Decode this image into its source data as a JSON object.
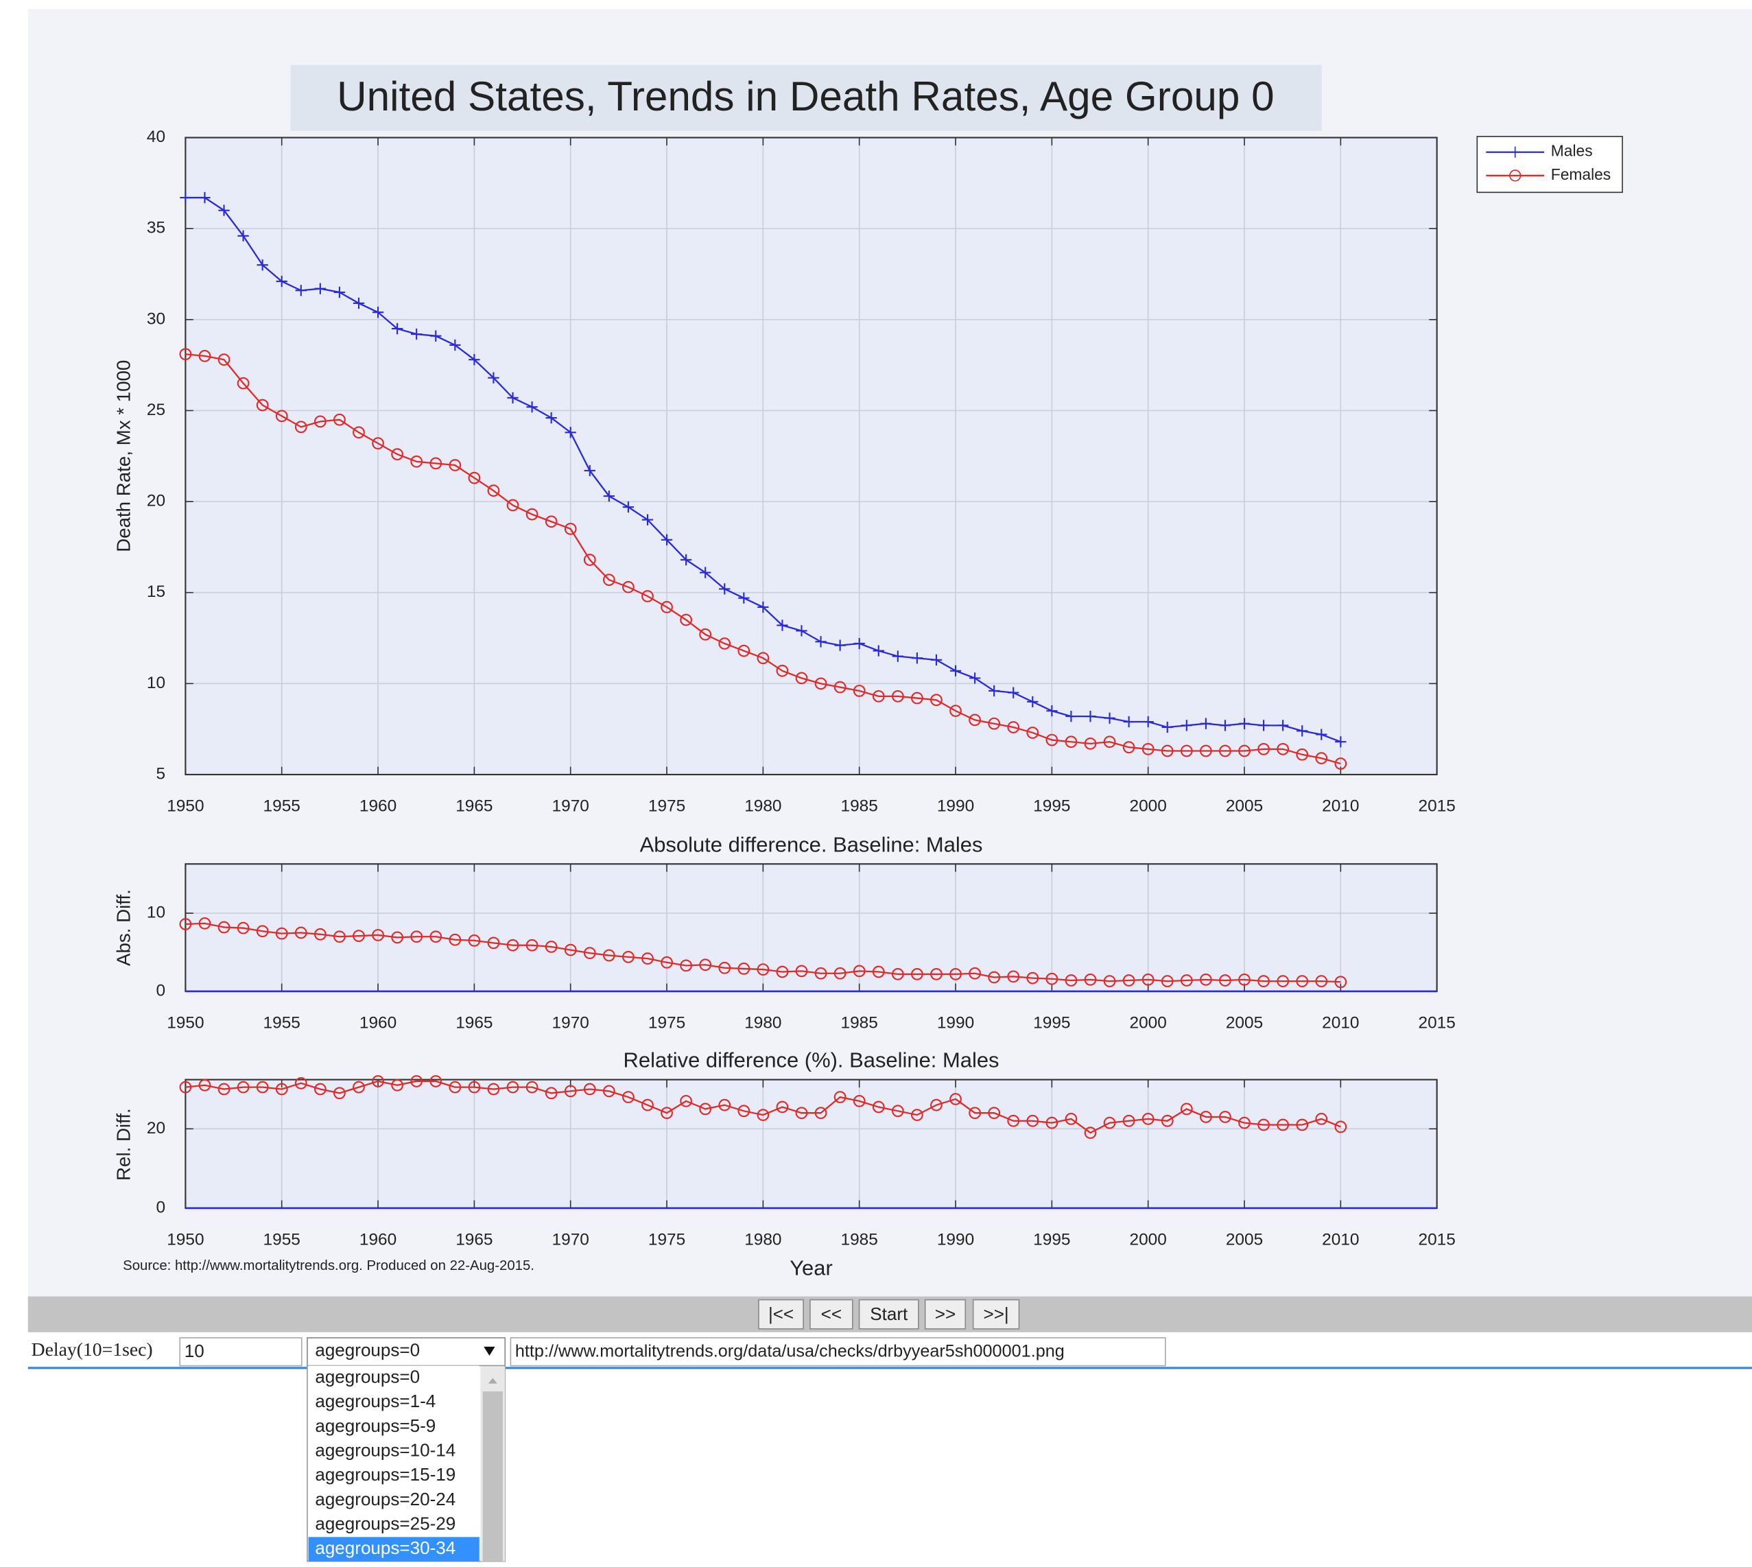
{
  "chart_data": [
    {
      "type": "line",
      "title": "United States, Trends in Death Rates, Age Group 0",
      "ylabel": "Death Rate, Mx * 1000",
      "x": [
        1950,
        1951,
        1952,
        1953,
        1954,
        1955,
        1956,
        1957,
        1958,
        1959,
        1960,
        1961,
        1962,
        1963,
        1964,
        1965,
        1966,
        1967,
        1968,
        1969,
        1970,
        1971,
        1972,
        1973,
        1974,
        1975,
        1976,
        1977,
        1978,
        1979,
        1980,
        1981,
        1982,
        1983,
        1984,
        1985,
        1986,
        1987,
        1988,
        1989,
        1990,
        1991,
        1992,
        1993,
        1994,
        1995,
        1996,
        1997,
        1998,
        1999,
        2000,
        2001,
        2002,
        2003,
        2004,
        2005,
        2006,
        2007,
        2008,
        2009,
        2010
      ],
      "series": [
        {
          "name": "Males",
          "color": "#2a2ad8",
          "marker": "plus",
          "values": [
            36.7,
            36.7,
            36.0,
            34.6,
            33.0,
            32.1,
            31.6,
            31.7,
            31.5,
            30.9,
            30.4,
            29.5,
            29.2,
            29.1,
            28.6,
            27.8,
            26.8,
            25.7,
            25.2,
            24.6,
            23.8,
            21.7,
            20.3,
            19.7,
            19.0,
            17.9,
            16.8,
            16.1,
            15.2,
            14.7,
            14.2,
            13.2,
            12.9,
            12.3,
            12.1,
            12.2,
            11.8,
            11.5,
            11.4,
            11.3,
            10.7,
            10.3,
            9.6,
            9.5,
            9.0,
            8.5,
            8.2,
            8.2,
            8.1,
            7.9,
            7.9,
            7.6,
            7.7,
            7.8,
            7.7,
            7.8,
            7.7,
            7.7,
            7.4,
            7.2,
            6.8
          ]
        },
        {
          "name": "Females",
          "color": "#e02a2a",
          "marker": "circle",
          "values": [
            28.1,
            28.0,
            27.8,
            26.5,
            25.3,
            24.7,
            24.1,
            24.4,
            24.5,
            23.8,
            23.2,
            22.6,
            22.2,
            22.1,
            22.0,
            21.3,
            20.6,
            19.8,
            19.3,
            18.9,
            18.5,
            16.8,
            15.7,
            15.3,
            14.8,
            14.2,
            13.5,
            12.7,
            12.2,
            11.8,
            11.4,
            10.7,
            10.3,
            10.0,
            9.8,
            9.6,
            9.3,
            9.3,
            9.2,
            9.1,
            8.5,
            8.0,
            7.8,
            7.6,
            7.3,
            6.9,
            6.8,
            6.7,
            6.8,
            6.5,
            6.4,
            6.3,
            6.3,
            6.3,
            6.3,
            6.3,
            6.4,
            6.4,
            6.1,
            5.9,
            5.6
          ]
        }
      ],
      "xlim": [
        1950,
        2015
      ],
      "xticks": [
        1950,
        1955,
        1960,
        1965,
        1970,
        1975,
        1980,
        1985,
        1990,
        1995,
        2000,
        2005,
        2010,
        2015
      ],
      "ylim": [
        5,
        40
      ],
      "yticks": [
        5,
        10,
        15,
        20,
        25,
        30,
        35,
        40
      ],
      "grid": true,
      "legend": "upper right outside"
    },
    {
      "type": "line",
      "title": "Absolute difference. Baseline: Males",
      "ylabel": "Abs. Diff.",
      "x": [
        1950,
        1951,
        1952,
        1953,
        1954,
        1955,
        1956,
        1957,
        1958,
        1959,
        1960,
        1961,
        1962,
        1963,
        1964,
        1965,
        1966,
        1967,
        1968,
        1969,
        1970,
        1971,
        1972,
        1973,
        1974,
        1975,
        1976,
        1977,
        1978,
        1979,
        1980,
        1981,
        1982,
        1983,
        1984,
        1985,
        1986,
        1987,
        1988,
        1989,
        1990,
        1991,
        1992,
        1993,
        1994,
        1995,
        1996,
        1997,
        1998,
        1999,
        2000,
        2001,
        2002,
        2003,
        2004,
        2005,
        2006,
        2007,
        2008,
        2009,
        2010
      ],
      "series": [
        {
          "color": "#e02a2a",
          "marker": "circle",
          "values": [
            8.6,
            8.7,
            8.2,
            8.1,
            7.7,
            7.4,
            7.5,
            7.3,
            7.0,
            7.1,
            7.2,
            6.9,
            7.0,
            7.0,
            6.6,
            6.5,
            6.2,
            5.9,
            5.9,
            5.7,
            5.3,
            4.9,
            4.6,
            4.4,
            4.2,
            3.7,
            3.3,
            3.4,
            3.0,
            2.9,
            2.8,
            2.5,
            2.6,
            2.3,
            2.3,
            2.6,
            2.5,
            2.2,
            2.2,
            2.2,
            2.2,
            2.3,
            1.8,
            1.9,
            1.7,
            1.6,
            1.4,
            1.5,
            1.3,
            1.4,
            1.5,
            1.3,
            1.4,
            1.5,
            1.4,
            1.5,
            1.3,
            1.3,
            1.3,
            1.3,
            1.2
          ]
        }
      ],
      "baseline": 0,
      "baseline_color": "#2a2ad8",
      "xlim": [
        1950,
        2015
      ],
      "xticks": [
        1950,
        1955,
        1960,
        1965,
        1970,
        1975,
        1980,
        1985,
        1990,
        1995,
        2000,
        2005,
        2010,
        2015
      ],
      "ylim": [
        0,
        16.3
      ],
      "yticks": [
        0,
        10
      ],
      "grid": true
    },
    {
      "type": "line",
      "title": "Relative difference (%). Baseline: Males",
      "ylabel": "Rel. Diff.",
      "xlabel": "Year",
      "source": "Source: http://www.mortalitytrends.org.  Produced on 22-Aug-2015.",
      "x": [
        1950,
        1951,
        1952,
        1953,
        1954,
        1955,
        1956,
        1957,
        1958,
        1959,
        1960,
        1961,
        1962,
        1963,
        1964,
        1965,
        1966,
        1967,
        1968,
        1969,
        1970,
        1971,
        1972,
        1973,
        1974,
        1975,
        1976,
        1977,
        1978,
        1979,
        1980,
        1981,
        1982,
        1983,
        1984,
        1985,
        1986,
        1987,
        1988,
        1989,
        1990,
        1991,
        1992,
        1993,
        1994,
        1995,
        1996,
        1997,
        1998,
        1999,
        2000,
        2001,
        2002,
        2003,
        2004,
        2005,
        2006,
        2007,
        2008,
        2009,
        2010
      ],
      "series": [
        {
          "color": "#e02a2a",
          "marker": "circle",
          "values": [
            30.5,
            31,
            30,
            30.5,
            30.5,
            30,
            31.5,
            30,
            29,
            30.5,
            32,
            31,
            32,
            32,
            30.5,
            30.5,
            30,
            30.5,
            30.5,
            29,
            29.5,
            30,
            29.5,
            28,
            26,
            24,
            27,
            25,
            26,
            24.5,
            23.5,
            25.5,
            24,
            24,
            28,
            27,
            25.5,
            24.5,
            23.5,
            26,
            27.5,
            24,
            24,
            22,
            22,
            21.5,
            22.5,
            19,
            21.5,
            22,
            22.5,
            22,
            25,
            23,
            23,
            21.5,
            21,
            21,
            21,
            22.5,
            20.5
          ]
        }
      ],
      "baseline": 0,
      "baseline_color": "#2a2ad8",
      "xlim": [
        1950,
        2015
      ],
      "xticks": [
        1950,
        1955,
        1960,
        1965,
        1970,
        1975,
        1980,
        1985,
        1990,
        1995,
        2000,
        2005,
        2010,
        2015
      ],
      "ylim": [
        0,
        32.4
      ],
      "yticks": [
        0,
        20
      ],
      "grid": true
    }
  ],
  "controls": {
    "buttons": [
      "|<<",
      "<<",
      "Start",
      ">>",
      ">>|"
    ],
    "delay_label": "Delay(10=1sec)",
    "delay_value": "10",
    "select_value": "agegroups=0",
    "options": [
      "agegroups=0",
      "agegroups=1-4",
      "agegroups=5-9",
      "agegroups=10-14",
      "agegroups=15-19",
      "agegroups=20-24",
      "agegroups=25-29",
      "agegroups=30-34"
    ],
    "highlighted_option": 7,
    "url": "http://www.mortalitytrends.org/data/usa/checks/drbyyear5sh000001.png"
  }
}
